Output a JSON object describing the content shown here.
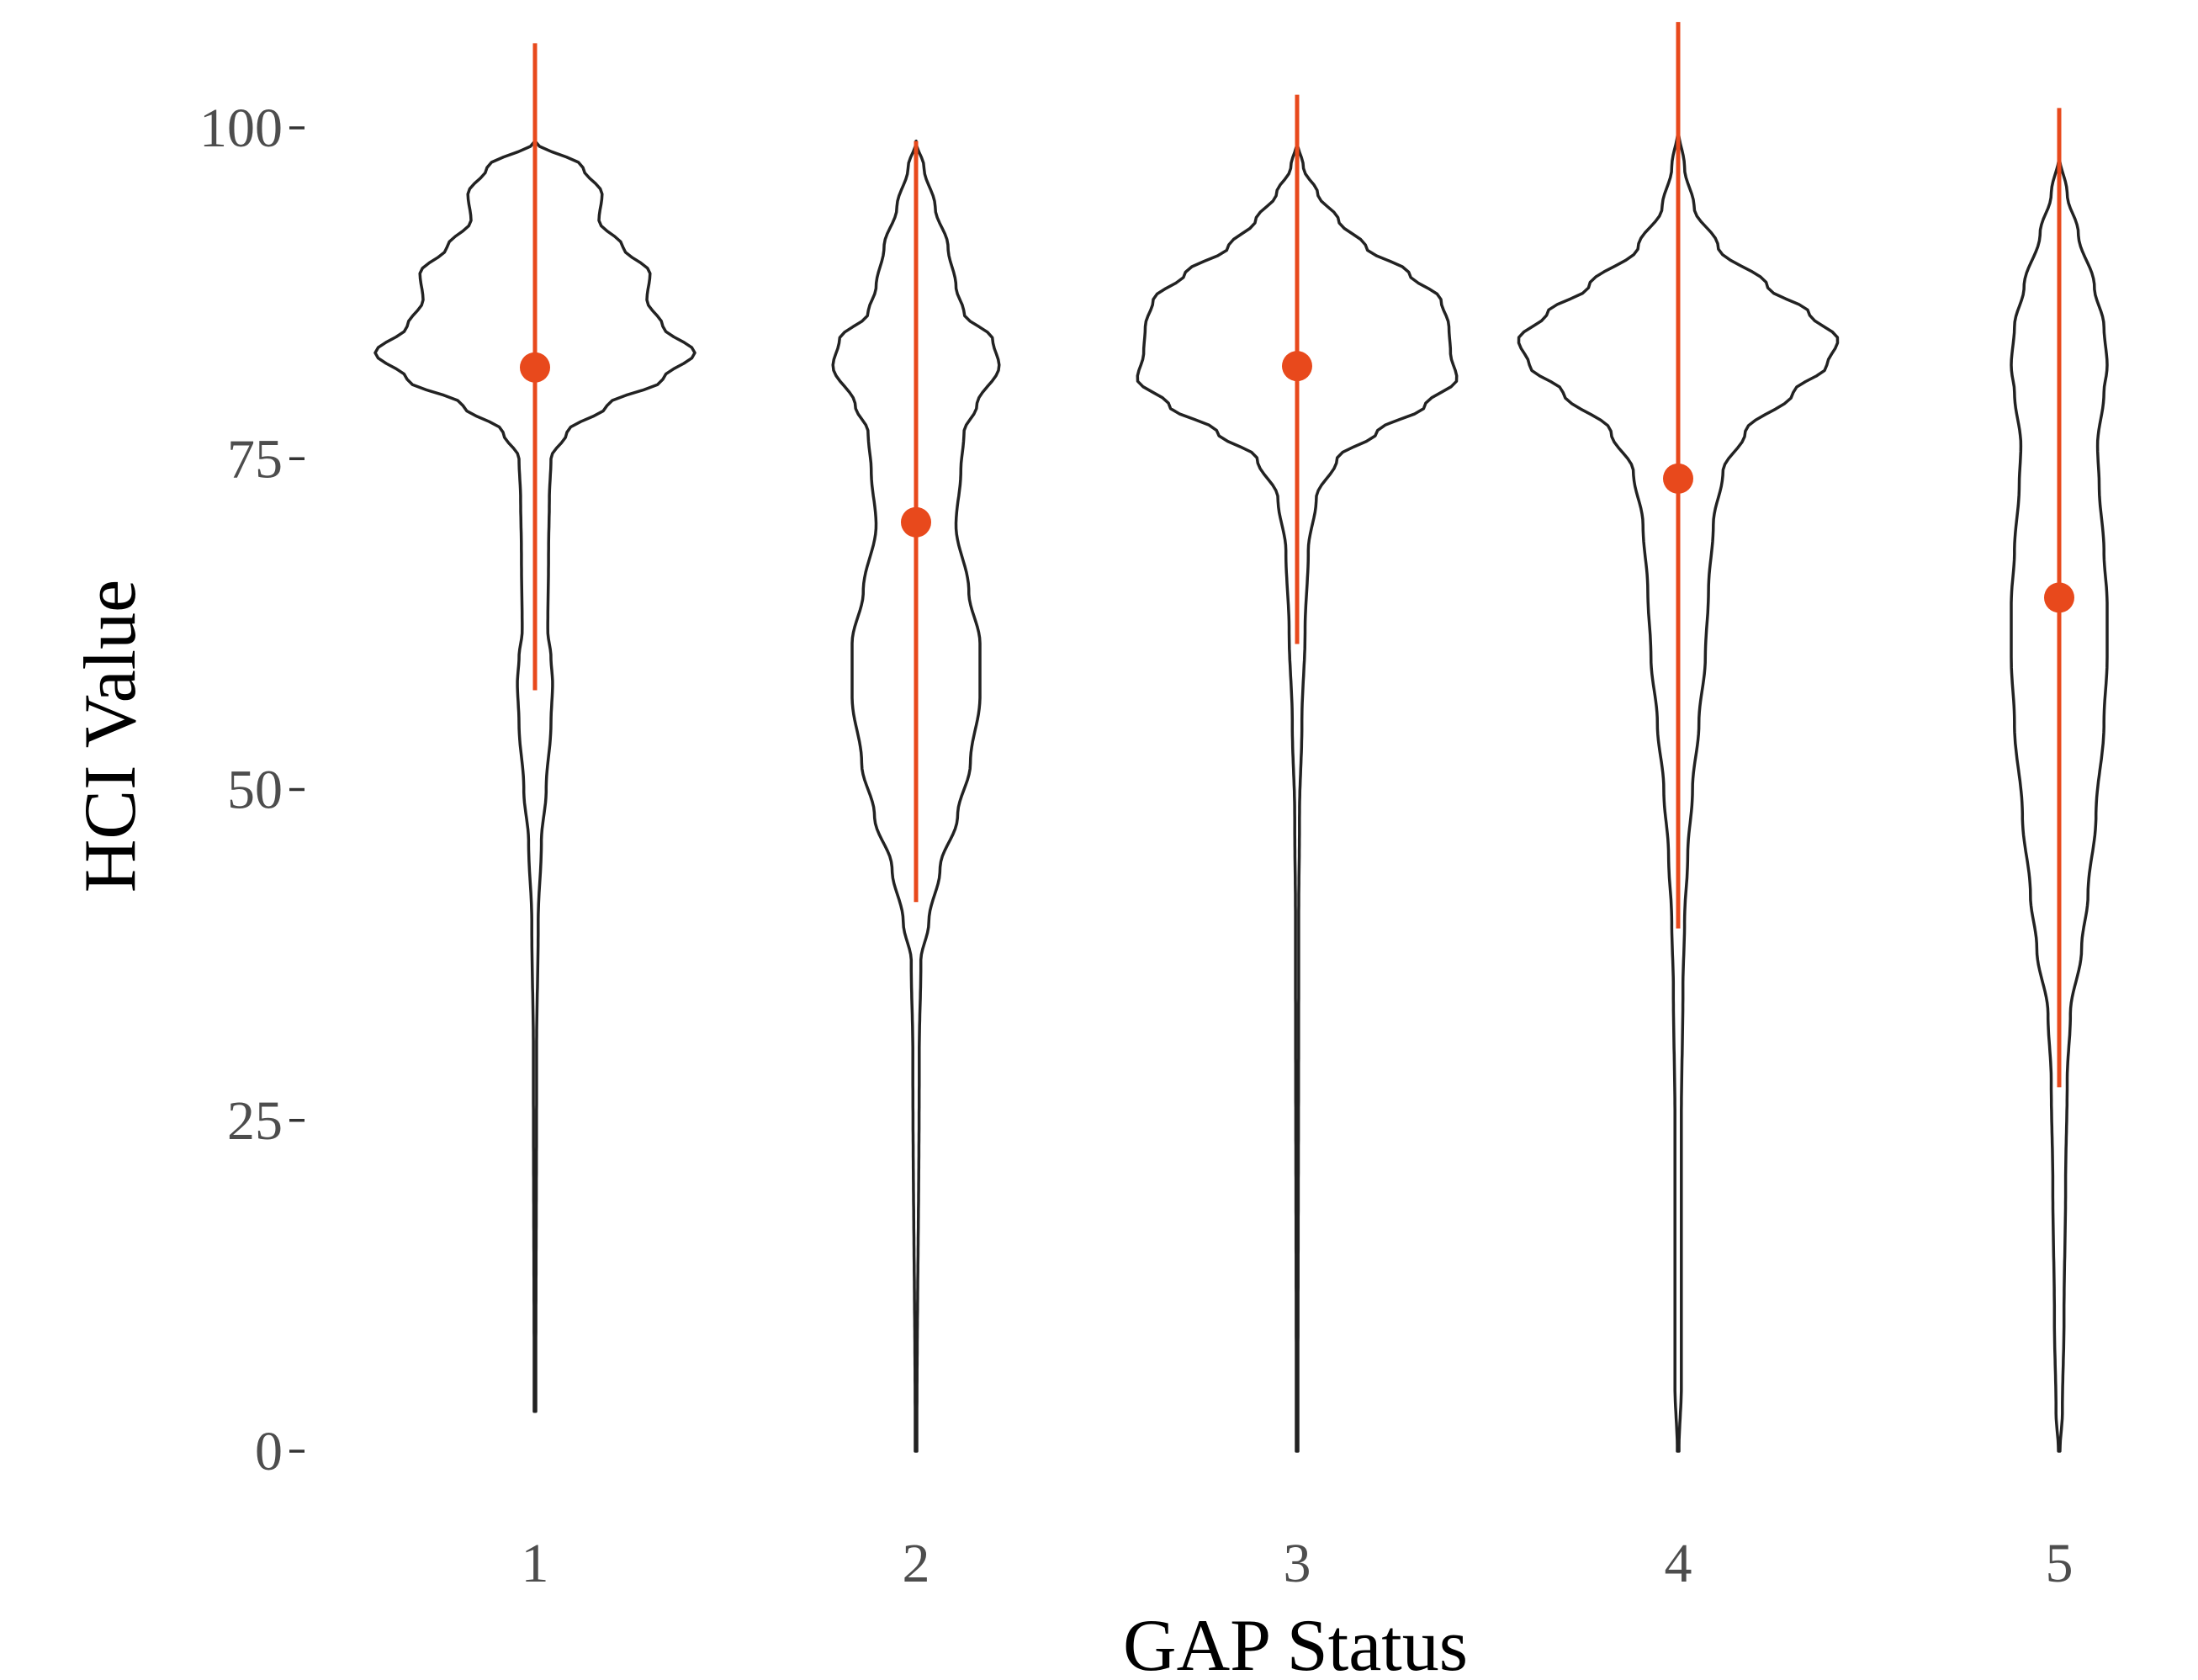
{
  "chart_data": {
    "type": "violin",
    "xlabel": "GAP Status",
    "ylabel": "HCI Value",
    "ylim": [
      -5,
      108
    ],
    "y_ticks": [
      0,
      25,
      50,
      75,
      100
    ],
    "categories": [
      "1",
      "2",
      "3",
      "4",
      "5"
    ],
    "grid": false,
    "colors": {
      "violin_outline": "#222222",
      "summary": "#e8491c"
    },
    "violins": [
      {
        "category": "1",
        "y_min": 3,
        "y_max": 99,
        "density": [
          [
            3,
            0.005
          ],
          [
            30,
            0.01
          ],
          [
            40,
            0.02
          ],
          [
            46,
            0.04
          ],
          [
            50,
            0.07
          ],
          [
            55,
            0.1
          ],
          [
            58,
            0.11
          ],
          [
            60,
            0.1
          ],
          [
            62,
            0.08
          ],
          [
            68,
            0.085
          ],
          [
            72,
            0.09
          ],
          [
            75,
            0.1
          ],
          [
            77,
            0.2
          ],
          [
            79,
            0.45
          ],
          [
            81,
            0.8
          ],
          [
            83,
            1.0
          ],
          [
            85,
            0.8
          ],
          [
            87,
            0.7
          ],
          [
            89,
            0.72
          ],
          [
            91,
            0.55
          ],
          [
            93,
            0.4
          ],
          [
            95,
            0.42
          ],
          [
            97,
            0.3
          ],
          [
            99,
            0.0
          ]
        ],
        "mean": 81.9,
        "range_low": 57.5,
        "range_high": 106.4
      },
      {
        "category": "2",
        "y_min": 0,
        "y_max": 99,
        "density": [
          [
            0,
            0.005
          ],
          [
            30,
            0.02
          ],
          [
            37,
            0.03
          ],
          [
            40,
            0.08
          ],
          [
            44,
            0.15
          ],
          [
            48,
            0.26
          ],
          [
            52,
            0.34
          ],
          [
            57,
            0.4
          ],
          [
            61,
            0.4
          ],
          [
            65,
            0.33
          ],
          [
            70,
            0.25
          ],
          [
            74,
            0.28
          ],
          [
            77,
            0.3
          ],
          [
            79,
            0.38
          ],
          [
            82,
            0.52
          ],
          [
            84,
            0.48
          ],
          [
            86,
            0.3
          ],
          [
            88,
            0.25
          ],
          [
            91,
            0.2
          ],
          [
            94,
            0.12
          ],
          [
            97,
            0.05
          ],
          [
            99,
            0.0
          ]
        ],
        "mean": 70.2,
        "range_low": 41.5,
        "range_high": 99.0
      },
      {
        "category": "3",
        "y_min": 0,
        "y_max": 99,
        "density": [
          [
            0,
            0.005
          ],
          [
            40,
            0.01
          ],
          [
            48,
            0.015
          ],
          [
            55,
            0.03
          ],
          [
            62,
            0.05
          ],
          [
            68,
            0.07
          ],
          [
            72,
            0.12
          ],
          [
            75,
            0.25
          ],
          [
            77,
            0.5
          ],
          [
            79,
            0.8
          ],
          [
            81,
            1.0
          ],
          [
            83,
            0.96
          ],
          [
            85,
            0.95
          ],
          [
            87,
            0.9
          ],
          [
            89,
            0.7
          ],
          [
            91,
            0.43
          ],
          [
            93,
            0.26
          ],
          [
            95,
            0.13
          ],
          [
            97,
            0.04
          ],
          [
            99,
            0.0
          ]
        ],
        "mean": 82.0,
        "range_low": 61.0,
        "range_high": 102.5
      },
      {
        "category": "4",
        "y_min": 0,
        "y_max": 100,
        "density": [
          [
            0,
            0.005
          ],
          [
            5,
            0.02
          ],
          [
            15,
            0.02
          ],
          [
            25,
            0.02
          ],
          [
            35,
            0.03
          ],
          [
            40,
            0.04
          ],
          [
            45,
            0.06
          ],
          [
            50,
            0.09
          ],
          [
            55,
            0.13
          ],
          [
            60,
            0.17
          ],
          [
            65,
            0.19
          ],
          [
            70,
            0.22
          ],
          [
            74,
            0.28
          ],
          [
            77,
            0.42
          ],
          [
            80,
            0.72
          ],
          [
            82,
            0.93
          ],
          [
            84,
            1.0
          ],
          [
            86,
            0.82
          ],
          [
            88,
            0.56
          ],
          [
            91,
            0.25
          ],
          [
            94,
            0.1
          ],
          [
            97,
            0.04
          ],
          [
            100,
            0.0
          ]
        ],
        "mean": 73.5,
        "range_low": 39.5,
        "range_high": 108.0
      },
      {
        "category": "5",
        "y_min": 0,
        "y_max": 98,
        "density": [
          [
            0,
            0.005
          ],
          [
            3,
            0.02
          ],
          [
            10,
            0.03
          ],
          [
            20,
            0.04
          ],
          [
            28,
            0.05
          ],
          [
            33,
            0.07
          ],
          [
            38,
            0.14
          ],
          [
            42,
            0.18
          ],
          [
            48,
            0.23
          ],
          [
            55,
            0.28
          ],
          [
            60,
            0.3
          ],
          [
            64,
            0.3
          ],
          [
            68,
            0.28
          ],
          [
            73,
            0.25
          ],
          [
            76,
            0.24
          ],
          [
            80,
            0.28
          ],
          [
            82,
            0.3
          ],
          [
            85,
            0.28
          ],
          [
            88,
            0.22
          ],
          [
            92,
            0.12
          ],
          [
            95,
            0.05
          ],
          [
            98,
            0.0
          ]
        ],
        "mean": 64.5,
        "range_low": 27.5,
        "range_high": 101.5
      }
    ]
  }
}
